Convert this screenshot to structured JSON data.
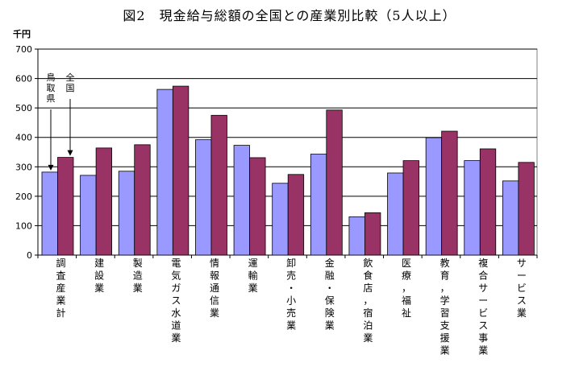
{
  "chart_data": {
    "type": "bar",
    "title": "図2　現金給与総額の全国との産業別比較（5人以上）",
    "ylabel": "千円",
    "xlabel": "",
    "ylim": [
      0,
      700
    ],
    "yticks": [
      0,
      100,
      200,
      300,
      400,
      500,
      600,
      700
    ],
    "grid": true,
    "legend": "none",
    "categories": [
      "調査産業計",
      "建設業",
      "製造業",
      "電気ガス水道業",
      "情報通信業",
      "運輸業",
      "卸売・小売業",
      "金融・保険業",
      "飲食店，宿泊業",
      "医療，福祉",
      "教育，学習支援業",
      "複合サービス事業",
      "サービス業"
    ],
    "series": [
      {
        "name": "鳥取県",
        "color": "#9999ff",
        "values": [
          282,
          271,
          285,
          563,
          392,
          373,
          244,
          343,
          130,
          279,
          399,
          321,
          252
        ]
      },
      {
        "name": "全国",
        "color": "#993366",
        "values": [
          332,
          364,
          375,
          574,
          475,
          331,
          274,
          493,
          144,
          321,
          421,
          361,
          315
        ]
      }
    ],
    "annotations": [
      {
        "text": "鳥取県",
        "target_series": 0
      },
      {
        "text": "全国",
        "target_series": 1
      }
    ]
  }
}
